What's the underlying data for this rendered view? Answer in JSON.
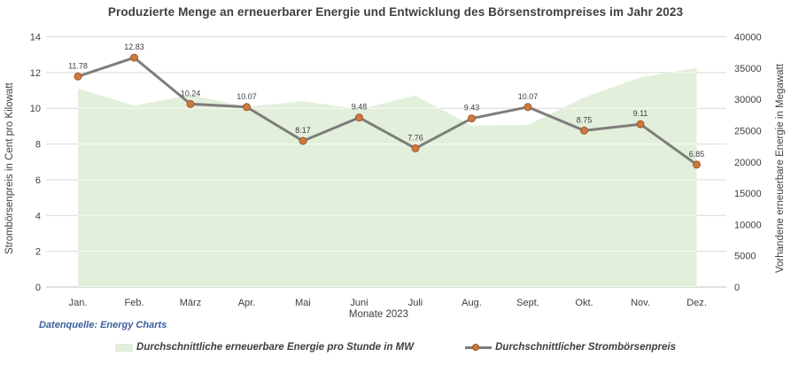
{
  "title": "Produzierte Menge an erneuerbarer Energie und Entwicklung des Börsenstrompreises im Jahr 2023",
  "source_note": "Datenquelle: Energy Charts",
  "colors": {
    "area_fill": "#e2efda",
    "line": "#7d7d7b",
    "marker_fill": "#cc7a40",
    "marker_border": "#a05a28",
    "gridline": "#d9d9d9",
    "baseline": "#bfbfbf",
    "tick_text": "#404040",
    "title_text": "#3f3f3f",
    "source_text": "#3a5f9e"
  },
  "chart_data": {
    "type": "combo",
    "subtypes": [
      "area",
      "line"
    ],
    "categories": [
      "Jan.",
      "Feb.",
      "März",
      "Apr.",
      "Mai",
      "Juni",
      "Juli",
      "Aug.",
      "Sept.",
      "Okt.",
      "Nov.",
      "Dez."
    ],
    "xlabel": "Monate 2023",
    "grid": true,
    "legend_position": "bottom",
    "left_axis": {
      "label": "Strombörsenpreis in Cent pro Kilowatt",
      "min": 0,
      "max": 14,
      "step": 2,
      "ticks": [
        "0",
        "2",
        "4",
        "6",
        "8",
        "10",
        "12",
        "14"
      ]
    },
    "right_axis": {
      "label": "Vorhandene erneuerbare Energie in Megawatt",
      "min": 0,
      "max": 40000,
      "step": 5000,
      "ticks": [
        "0",
        "5000",
        "10000",
        "15000",
        "20000",
        "25000",
        "30000",
        "35000",
        "40000"
      ]
    },
    "series": [
      {
        "name": "Durchschnittliche erneuerbare Energie pro Stunde in MW",
        "type": "area",
        "axis": "right",
        "color": "#e2efda",
        "values": [
          31700,
          29000,
          30700,
          28800,
          29700,
          28400,
          30600,
          25800,
          25900,
          30300,
          33500,
          35000
        ],
        "data_labels": false
      },
      {
        "name": "Durchschnittlicher Strombörsenpreis",
        "type": "line",
        "axis": "left",
        "color": "#7d7d7b",
        "marker_color": "#cc7a40",
        "values": [
          11.78,
          12.83,
          10.24,
          10.07,
          8.17,
          9.48,
          7.76,
          9.43,
          10.07,
          8.75,
          9.11,
          6.85
        ],
        "data_labels": true
      }
    ]
  }
}
